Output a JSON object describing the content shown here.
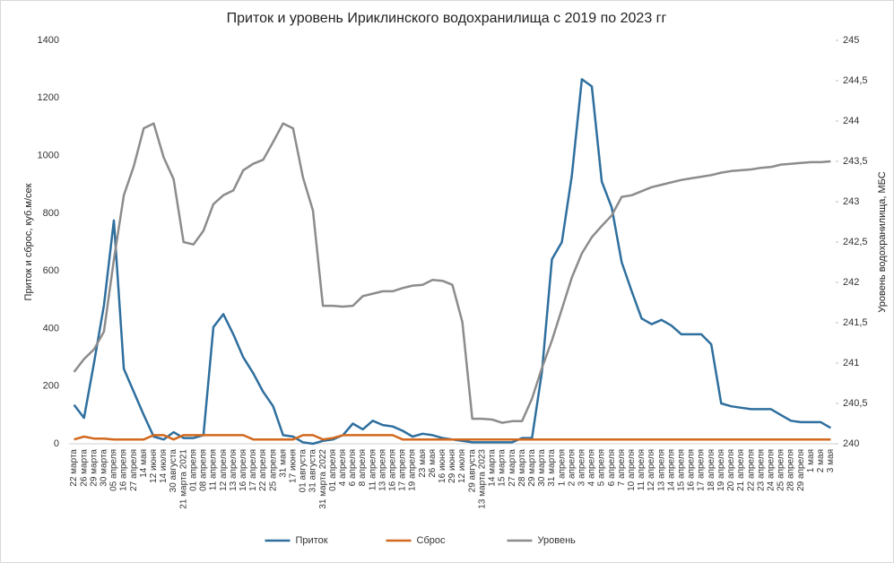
{
  "chart_data": {
    "type": "line",
    "title": "Приток и уровень Ириклинского водохранилища с 2019 по 2023 гг",
    "y_label": "Приток и сброс, куб.м/сек",
    "y2_label": "Уровень водохранилища, МБС",
    "categories": [
      "22 марта",
      "26 марта",
      "29 марта",
      "30 марта",
      "05 апреля",
      "16 апреля",
      "27 апреля",
      "14 мая",
      "12 июня",
      "14 июля",
      "30 августа",
      "21 марта 2021",
      "01 апреля",
      "08 апреля",
      "11 апреля",
      "12 апреля",
      "13 апреля",
      "16 апреля",
      "17 апреля",
      "22 апреля",
      "25 апреля",
      "31 мая",
      "17 июня",
      "01 августа",
      "31 августа",
      "31 марта 2022",
      "01 апреля",
      "4 апреля",
      "6 апреля",
      "8 апреля",
      "11 апреля",
      "13 апреля",
      "16 апреля",
      "17 апреля",
      "19 апреля",
      "23 мая",
      "26 мая",
      "16 июня",
      "29 июня",
      "12 июля",
      "29 августа",
      "13 марта 2023",
      "14 марта",
      "15 марта",
      "27 марта",
      "28 марта",
      "29 марта",
      "30 марта",
      "31 марта",
      "1 апреля",
      "2 апреля",
      "3 апреля",
      "4 апреля",
      "5 апреля",
      "6 апреля",
      "7 апреля",
      "10 апреля",
      "11 апреля",
      "12 апреля",
      "13 апреля",
      "14 апреля",
      "15 апреля",
      "16 апреля",
      "17 апреля",
      "18 апреля",
      "19 апреля",
      "20 апреля",
      "21 апреля",
      "22 апреля",
      "23 апреля",
      "24 апреля",
      "25 апреля",
      "28 апреля",
      "29 апреля",
      "1 мая",
      "2 мая",
      "3 мая"
    ],
    "series": [
      {
        "name": "Приток",
        "color": "#2e6f9e",
        "values": [
          135,
          90,
          280,
          480,
          775,
          260,
          180,
          100,
          25,
          15,
          40,
          20,
          20,
          30,
          405,
          450,
          380,
          300,
          245,
          180,
          130,
          30,
          25,
          5,
          0,
          10,
          15,
          30,
          70,
          50,
          80,
          65,
          60,
          45,
          25,
          35,
          30,
          20,
          15,
          10,
          5,
          5,
          5,
          5,
          5,
          20,
          20,
          250,
          640,
          700,
          930,
          1265,
          1240,
          910,
          820,
          630,
          530,
          435,
          415,
          430,
          410,
          380,
          380,
          380,
          345,
          140,
          130,
          125,
          120,
          120,
          120,
          100,
          80,
          75,
          75,
          75,
          55
        ]
      },
      {
        "name": "Сброс",
        "color": "#d2691e",
        "values": [
          15,
          25,
          18,
          18,
          15,
          15,
          15,
          15,
          30,
          30,
          15,
          30,
          30,
          30,
          30,
          30,
          30,
          30,
          15,
          15,
          15,
          15,
          15,
          30,
          30,
          15,
          20,
          30,
          30,
          30,
          30,
          30,
          30,
          15,
          15,
          15,
          15,
          15,
          15,
          15,
          15,
          15,
          15,
          15,
          15,
          15,
          15,
          15,
          15,
          15,
          15,
          15,
          15,
          15,
          15,
          15,
          15,
          15,
          15,
          15,
          15,
          15,
          15,
          15,
          15,
          15,
          15,
          15,
          15,
          15,
          15,
          15,
          15,
          15,
          15,
          15,
          15
        ]
      },
      {
        "name": "Уровень",
        "color": "#8c8c8c",
        "axis": "y2",
        "values": [
          240.89,
          241.05,
          241.17,
          241.39,
          242.28,
          243.08,
          243.44,
          243.91,
          243.97,
          243.55,
          243.28,
          242.5,
          242.47,
          242.64,
          242.97,
          243.08,
          243.14,
          243.39,
          243.47,
          243.52,
          243.74,
          243.97,
          243.91,
          243.3,
          242.89,
          241.71,
          241.71,
          241.7,
          241.71,
          241.83,
          241.86,
          241.89,
          241.89,
          241.93,
          241.96,
          241.97,
          242.03,
          242.02,
          241.97,
          241.51,
          240.31,
          240.31,
          240.3,
          240.26,
          240.28,
          240.28,
          240.56,
          240.94,
          241.28,
          241.67,
          242.06,
          242.36,
          242.56,
          242.7,
          242.83,
          243.06,
          243.08,
          243.13,
          243.18,
          243.21,
          243.24,
          243.27,
          243.29,
          243.31,
          243.33,
          243.36,
          243.38,
          243.39,
          243.4,
          243.42,
          243.43,
          243.46,
          243.47,
          243.48,
          243.49,
          243.49,
          243.5
        ]
      }
    ],
    "ylim": [
      0,
      1400
    ],
    "yticks": [
      0,
      200,
      400,
      600,
      800,
      1000,
      1200,
      1400
    ],
    "y2lim": [
      240,
      245
    ],
    "y2ticks": [
      240,
      {
        "value": 240.5,
        "label": "240,5"
      },
      241,
      {
        "value": 241.5,
        "label": "241,5"
      },
      242,
      {
        "value": 242.5,
        "label": "242,5"
      },
      243,
      {
        "value": 243.5,
        "label": "243,5"
      },
      244,
      {
        "value": 244.5,
        "label": "244,5"
      },
      245
    ],
    "grid": false,
    "legend": "bottom"
  }
}
